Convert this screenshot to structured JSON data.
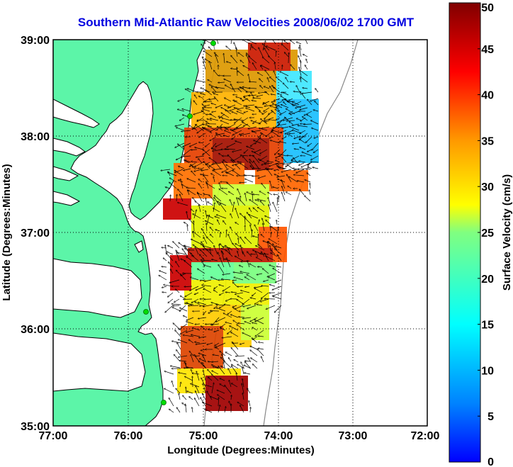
{
  "title": "Southern Mid-Atlantic Raw Velocities 2008/06/02 1700 GMT",
  "x_axis": {
    "label": "Longitude (Degrees:Minutes)",
    "ticks": [
      "77:00",
      "76:00",
      "75:00",
      "74:00",
      "73:00",
      "72:00"
    ],
    "range": [
      -77,
      -72
    ]
  },
  "y_axis": {
    "label": "Latitude (Degrees:Minutes)",
    "ticks": [
      "39:00",
      "38:00",
      "37:00",
      "36:00",
      "35:00"
    ],
    "range": [
      35,
      39
    ]
  },
  "colorbar": {
    "label": "Surface Velocity (cm/s)",
    "ticks": [
      "50",
      "45",
      "40",
      "35",
      "30",
      "25",
      "20",
      "15",
      "10",
      "5",
      "0"
    ],
    "range": [
      0,
      50
    ]
  },
  "colors": {
    "land": "#5cf5a8",
    "water": "#ffffff",
    "title": "#0000e0",
    "station": "#00dd00"
  },
  "grid": "dotted"
}
